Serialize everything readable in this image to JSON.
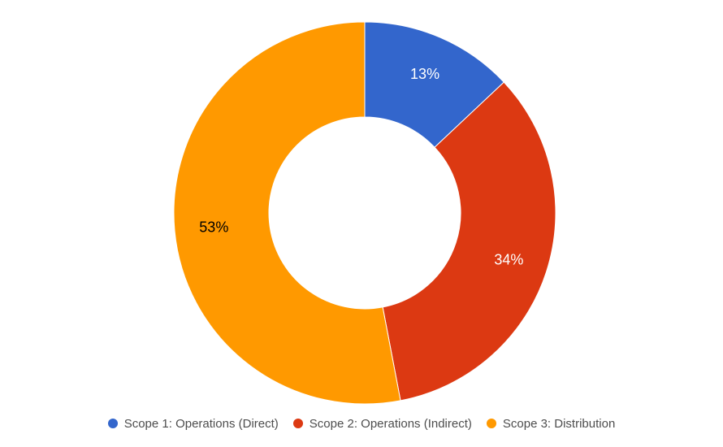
{
  "chart_data": {
    "type": "pie",
    "donut": true,
    "legend_position": "bottom",
    "slices": [
      {
        "label": "Scope 1: Operations (Direct)",
        "value": 13,
        "value_label": "13%",
        "color": "#3366cc",
        "label_color": "#ffffff"
      },
      {
        "label": "Scope 2: Operations (Indirect)",
        "value": 34,
        "value_label": "34%",
        "color": "#dc3912",
        "label_color": "#ffffff"
      },
      {
        "label": "Scope 3: Distribution",
        "value": 53,
        "value_label": "53%",
        "color": "#ff9900",
        "label_color": "#000000"
      }
    ]
  }
}
